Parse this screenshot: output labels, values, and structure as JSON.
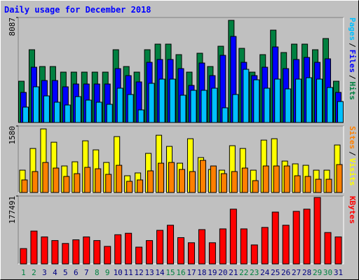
{
  "title": "Daily usage for December 2018",
  "chart_data": [
    {
      "type": "bar",
      "legend_separator": "/",
      "ylim": [
        0,
        8087
      ],
      "yticks": [
        8087
      ],
      "series": [
        {
          "name": "Pages",
          "color": "#00c0ff",
          "values": [
            1186,
            2749,
            2048,
            1563,
            1348,
            1994,
            1725,
            1563,
            1401,
            2641,
            2156,
            970,
            3018,
            3342,
            3342,
            2102,
            2479,
            2479,
            2641,
            1132,
            2156,
            4096,
            3288,
            2641,
            3342,
            2587,
            3342,
            3450,
            3342,
            2695,
            1617
          ]
        },
        {
          "name": "Files",
          "color": "#0000ff",
          "values": [
            2318,
            4258,
            3234,
            3234,
            2749,
            2965,
            2965,
            2965,
            2965,
            4150,
            3611,
            3126,
            4635,
            4851,
            4851,
            4150,
            2857,
            4582,
            3611,
            5174,
            6630,
            4635,
            3611,
            4258,
            5821,
            4150,
            4851,
            5013,
            4635,
            4905,
            2318
          ]
        },
        {
          "name": "Hits",
          "color": "#008040",
          "values": [
            3180,
            5606,
            4312,
            4312,
            3881,
            3881,
            3881,
            3881,
            3881,
            5606,
            4312,
            3881,
            5606,
            6037,
            6037,
            5228,
            3881,
            5336,
            4312,
            5875,
            7869,
            5713,
            3881,
            5228,
            7115,
            5390,
            6037,
            6037,
            5606,
            6468,
            3180
          ]
        }
      ]
    },
    {
      "type": "bar",
      "legend_separator": "/",
      "ylim": [
        0,
        1580
      ],
      "yticks": [
        1580
      ],
      "series": [
        {
          "name": "Sites",
          "color": "#ff8000",
          "values": [
            299,
            498,
            714,
            581,
            382,
            448,
            598,
            564,
            432,
            647,
            266,
            299,
            515,
            697,
            714,
            548,
            498,
            764,
            631,
            448,
            498,
            581,
            282,
            631,
            631,
            631,
            398,
            382,
            315,
            315,
            664
          ]
        },
        {
          "name": "Visits",
          "color": "#ffff00",
          "values": [
            531,
            1046,
            1511,
            1195,
            631,
            730,
            1228,
            1013,
            714,
            1328,
            398,
            465,
            930,
            1361,
            1096,
            697,
            1278,
            830,
            548,
            531,
            1112,
            1046,
            531,
            1245,
            1278,
            747,
            681,
            647,
            531,
            531,
            1129
          ]
        }
      ]
    },
    {
      "type": "bar",
      "ylim": [
        0,
        177491
      ],
      "yticks": [
        177491
      ],
      "categories": [
        "1",
        "2",
        "3",
        "4",
        "5",
        "6",
        "7",
        "8",
        "9",
        "10",
        "11",
        "12",
        "13",
        "14",
        "15",
        "16",
        "17",
        "18",
        "19",
        "20",
        "21",
        "22",
        "23",
        "24",
        "25",
        "26",
        "27",
        "28",
        "29",
        "30",
        "31"
      ],
      "category_color": "#000080",
      "highlight_color": "#008040",
      "highlighted": [
        "1",
        "2",
        "8",
        "9",
        "15",
        "16",
        "22",
        "23",
        "29",
        "30"
      ],
      "series": [
        {
          "name": "KBytes",
          "color": "#ff0000",
          "values": [
            40068,
            85860,
            70596,
            61056,
            53424,
            62964,
            70596,
            61056,
            45792,
            76320,
            80136,
            43884,
            61056,
            87768,
            101124,
            68688,
            55332,
            89676,
            55332,
            91584,
            143100,
            91584,
            49608,
            95400,
            135468,
            101124,
            137376,
            143100,
            173628,
            82044,
            70596
          ]
        }
      ]
    }
  ]
}
